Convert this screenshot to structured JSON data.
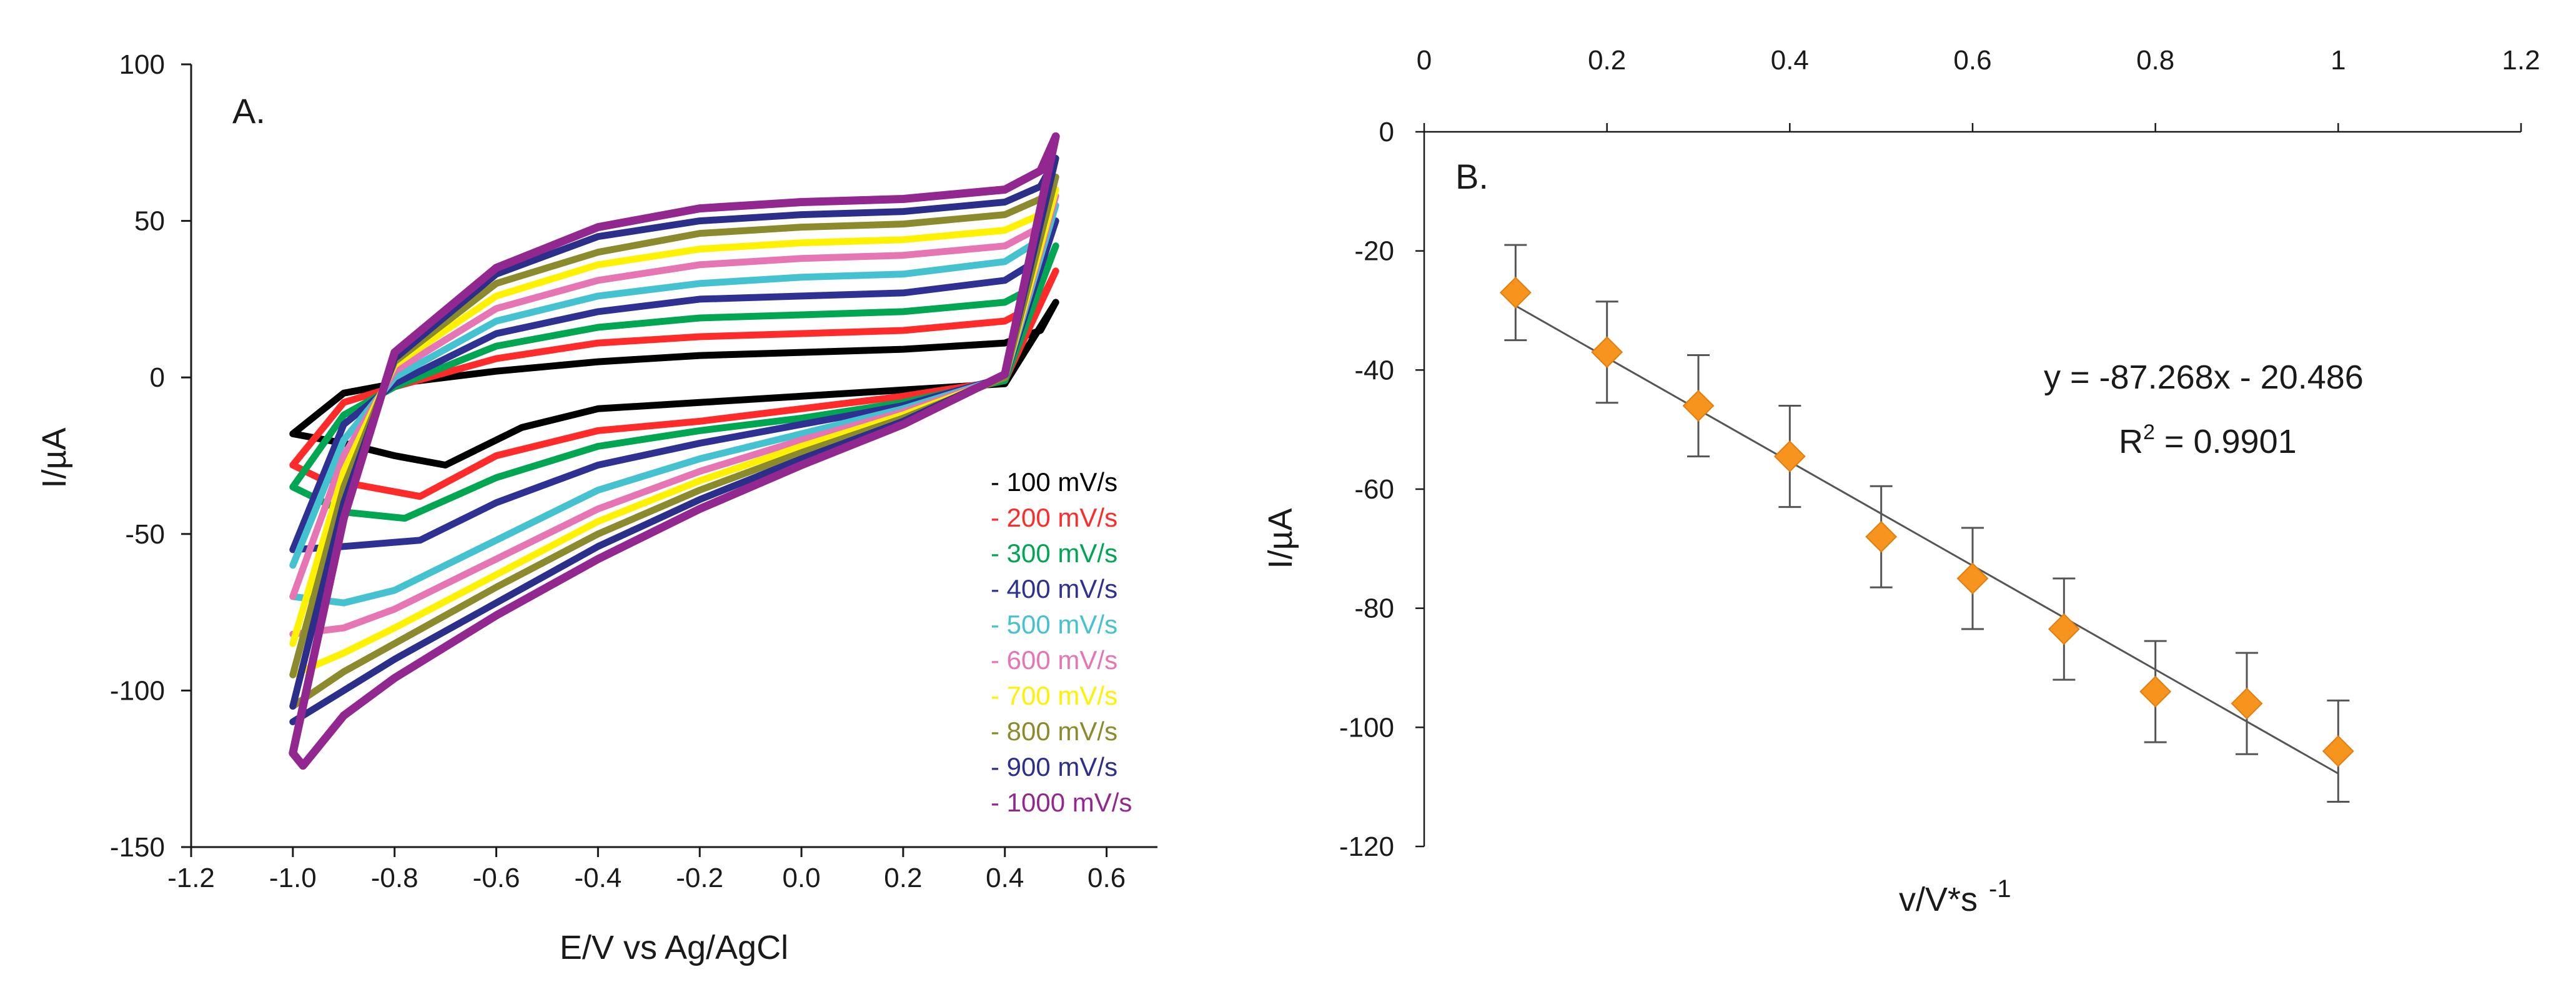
{
  "chart_data": [
    {
      "type": "line",
      "panel_label": "A.",
      "xlabel": "E/V vs Ag/AgCl",
      "ylabel": "I/µA",
      "xlim": [
        -1.2,
        0.7
      ],
      "ylim": [
        -150,
        100
      ],
      "xticks": [
        "-1.2",
        "-1.0",
        "-0.8",
        "-0.6",
        "-0.4",
        "-0.2",
        "0.0",
        "0.2",
        "0.4",
        "0.6"
      ],
      "yticks": [
        "100",
        "50",
        "0",
        "-50",
        "-100",
        "-150"
      ],
      "grid": false,
      "legend_position": "bottom-right",
      "series": [
        {
          "name": "100 mV/s",
          "color": "#000000",
          "anodic": [
            [
              -1.0,
              -18
            ],
            [
              -0.9,
              -5
            ],
            [
              -0.8,
              -2
            ],
            [
              -0.6,
              2
            ],
            [
              -0.4,
              5
            ],
            [
              -0.2,
              7
            ],
            [
              0.0,
              8
            ],
            [
              0.2,
              9
            ],
            [
              0.4,
              11
            ],
            [
              0.47,
              15
            ],
            [
              0.5,
              24
            ]
          ],
          "cathodic": [
            [
              0.5,
              16
            ],
            [
              0.4,
              -2
            ],
            [
              0.2,
              -4
            ],
            [
              0.0,
              -6
            ],
            [
              -0.2,
              -8
            ],
            [
              -0.4,
              -10
            ],
            [
              -0.55,
              -16
            ],
            [
              -0.7,
              -28
            ],
            [
              -0.8,
              -25
            ],
            [
              -0.9,
              -21
            ],
            [
              -1.0,
              -18
            ]
          ]
        },
        {
          "name": "200 mV/s",
          "color": "#ff2a2a",
          "anodic": [
            [
              -1.0,
              -28
            ],
            [
              -0.9,
              -8
            ],
            [
              -0.8,
              -3
            ],
            [
              -0.6,
              6
            ],
            [
              -0.4,
              11
            ],
            [
              -0.2,
              13
            ],
            [
              0.0,
              14
            ],
            [
              0.2,
              15
            ],
            [
              0.4,
              18
            ],
            [
              0.47,
              24
            ],
            [
              0.5,
              34
            ]
          ],
          "cathodic": [
            [
              0.5,
              20
            ],
            [
              0.4,
              -1
            ],
            [
              0.2,
              -6
            ],
            [
              0.0,
              -10
            ],
            [
              -0.2,
              -14
            ],
            [
              -0.4,
              -17
            ],
            [
              -0.6,
              -25
            ],
            [
              -0.75,
              -38
            ],
            [
              -0.85,
              -35
            ],
            [
              -0.95,
              -32
            ],
            [
              -1.0,
              -28
            ]
          ]
        },
        {
          "name": "300 mV/s",
          "color": "#00a651",
          "anodic": [
            [
              -1.0,
              -35
            ],
            [
              -0.9,
              -12
            ],
            [
              -0.8,
              -3
            ],
            [
              -0.6,
              10
            ],
            [
              -0.4,
              16
            ],
            [
              -0.2,
              19
            ],
            [
              0.0,
              20
            ],
            [
              0.2,
              21
            ],
            [
              0.4,
              24
            ],
            [
              0.47,
              30
            ],
            [
              0.5,
              42
            ]
          ],
          "cathodic": [
            [
              0.5,
              24
            ],
            [
              0.4,
              -1
            ],
            [
              0.2,
              -8
            ],
            [
              0.0,
              -13
            ],
            [
              -0.2,
              -17
            ],
            [
              -0.4,
              -22
            ],
            [
              -0.6,
              -32
            ],
            [
              -0.78,
              -45
            ],
            [
              -0.9,
              -43
            ],
            [
              -1.0,
              -35
            ]
          ]
        },
        {
          "name": "400 mV/s",
          "color": "#2e3192",
          "anodic": [
            [
              -1.0,
              -55
            ],
            [
              -0.9,
              -15
            ],
            [
              -0.8,
              -2
            ],
            [
              -0.6,
              14
            ],
            [
              -0.4,
              21
            ],
            [
              -0.2,
              25
            ],
            [
              0.0,
              26
            ],
            [
              0.2,
              27
            ],
            [
              0.4,
              31
            ],
            [
              0.47,
              38
            ],
            [
              0.5,
              50
            ]
          ],
          "cathodic": [
            [
              0.5,
              27
            ],
            [
              0.4,
              0
            ],
            [
              0.2,
              -9
            ],
            [
              0.0,
              -15
            ],
            [
              -0.2,
              -21
            ],
            [
              -0.4,
              -28
            ],
            [
              -0.6,
              -40
            ],
            [
              -0.75,
              -52
            ],
            [
              -0.9,
              -54
            ],
            [
              -1.0,
              -55
            ]
          ]
        },
        {
          "name": "500 mV/s",
          "color": "#45c2d0",
          "anodic": [
            [
              -1.0,
              -60
            ],
            [
              -0.9,
              -20
            ],
            [
              -0.8,
              0
            ],
            [
              -0.6,
              18
            ],
            [
              -0.4,
              26
            ],
            [
              -0.2,
              30
            ],
            [
              0.0,
              32
            ],
            [
              0.2,
              33
            ],
            [
              0.4,
              37
            ],
            [
              0.47,
              44
            ],
            [
              0.5,
              55
            ]
          ],
          "cathodic": [
            [
              0.5,
              30
            ],
            [
              0.4,
              0
            ],
            [
              0.2,
              -10
            ],
            [
              0.0,
              -18
            ],
            [
              -0.2,
              -26
            ],
            [
              -0.4,
              -36
            ],
            [
              -0.6,
              -52
            ],
            [
              -0.8,
              -68
            ],
            [
              -0.9,
              -72
            ],
            [
              -1.0,
              -70
            ]
          ]
        },
        {
          "name": "600 mV/s",
          "color": "#e675b4",
          "anodic": [
            [
              -1.0,
              -70
            ],
            [
              -0.9,
              -25
            ],
            [
              -0.8,
              2
            ],
            [
              -0.6,
              22
            ],
            [
              -0.4,
              31
            ],
            [
              -0.2,
              36
            ],
            [
              0.0,
              38
            ],
            [
              0.2,
              39
            ],
            [
              0.4,
              42
            ],
            [
              0.47,
              48
            ],
            [
              0.5,
              58
            ]
          ],
          "cathodic": [
            [
              0.5,
              32
            ],
            [
              0.4,
              0
            ],
            [
              0.2,
              -11
            ],
            [
              0.0,
              -20
            ],
            [
              -0.2,
              -30
            ],
            [
              -0.4,
              -42
            ],
            [
              -0.6,
              -58
            ],
            [
              -0.8,
              -74
            ],
            [
              -0.9,
              -80
            ],
            [
              -1.0,
              -82
            ]
          ]
        },
        {
          "name": "700 mV/s",
          "color": "#fff200",
          "anodic": [
            [
              -1.0,
              -85
            ],
            [
              -0.9,
              -30
            ],
            [
              -0.8,
              4
            ],
            [
              -0.6,
              26
            ],
            [
              -0.4,
              36
            ],
            [
              -0.2,
              41
            ],
            [
              0.0,
              43
            ],
            [
              0.2,
              44
            ],
            [
              0.4,
              47
            ],
            [
              0.47,
              52
            ],
            [
              0.5,
              60
            ]
          ],
          "cathodic": [
            [
              0.5,
              34
            ],
            [
              0.4,
              0
            ],
            [
              0.2,
              -12
            ],
            [
              0.0,
              -22
            ],
            [
              -0.2,
              -33
            ],
            [
              -0.4,
              -46
            ],
            [
              -0.6,
              -63
            ],
            [
              -0.8,
              -80
            ],
            [
              -0.9,
              -88
            ],
            [
              -1.0,
              -95
            ]
          ]
        },
        {
          "name": "800 mV/s",
          "color": "#8b8b2e",
          "anodic": [
            [
              -1.0,
              -95
            ],
            [
              -0.9,
              -35
            ],
            [
              -0.8,
              5
            ],
            [
              -0.6,
              30
            ],
            [
              -0.4,
              40
            ],
            [
              -0.2,
              46
            ],
            [
              0.0,
              48
            ],
            [
              0.2,
              49
            ],
            [
              0.4,
              52
            ],
            [
              0.47,
              57
            ],
            [
              0.5,
              64
            ]
          ],
          "cathodic": [
            [
              0.5,
              35
            ],
            [
              0.4,
              0
            ],
            [
              0.2,
              -13
            ],
            [
              0.0,
              -24
            ],
            [
              -0.2,
              -36
            ],
            [
              -0.4,
              -50
            ],
            [
              -0.6,
              -67
            ],
            [
              -0.8,
              -85
            ],
            [
              -0.9,
              -94
            ],
            [
              -1.0,
              -105
            ]
          ]
        },
        {
          "name": "900 mV/s",
          "color": "#2b2f8a",
          "anodic": [
            [
              -1.0,
              -105
            ],
            [
              -0.9,
              -40
            ],
            [
              -0.8,
              6
            ],
            [
              -0.6,
              33
            ],
            [
              -0.4,
              45
            ],
            [
              -0.2,
              50
            ],
            [
              0.0,
              52
            ],
            [
              0.2,
              53
            ],
            [
              0.4,
              56
            ],
            [
              0.47,
              61
            ],
            [
              0.5,
              70
            ]
          ],
          "cathodic": [
            [
              0.5,
              36
            ],
            [
              0.4,
              1
            ],
            [
              0.2,
              -14
            ],
            [
              0.0,
              -26
            ],
            [
              -0.2,
              -39
            ],
            [
              -0.4,
              -54
            ],
            [
              -0.6,
              -72
            ],
            [
              -0.8,
              -90
            ],
            [
              -0.9,
              -100
            ],
            [
              -1.0,
              -110
            ]
          ]
        },
        {
          "name": "1000 mV/s",
          "color": "#92278f",
          "anodic": [
            [
              -1.0,
              -120
            ],
            [
              -0.9,
              -45
            ],
            [
              -0.8,
              8
            ],
            [
              -0.6,
              35
            ],
            [
              -0.4,
              48
            ],
            [
              -0.2,
              54
            ],
            [
              0.0,
              56
            ],
            [
              0.2,
              57
            ],
            [
              0.4,
              60
            ],
            [
              0.47,
              66
            ],
            [
              0.5,
              77
            ]
          ],
          "cathodic": [
            [
              0.5,
              38
            ],
            [
              0.4,
              1
            ],
            [
              0.2,
              -15
            ],
            [
              0.0,
              -28
            ],
            [
              -0.2,
              -42
            ],
            [
              -0.4,
              -58
            ],
            [
              -0.6,
              -76
            ],
            [
              -0.8,
              -96
            ],
            [
              -0.9,
              -108
            ],
            [
              -0.98,
              -124
            ],
            [
              -1.0,
              -120
            ]
          ]
        }
      ]
    },
    {
      "type": "scatter",
      "panel_label": "B.",
      "xlabel": "v/V*s",
      "xlabel_sup": "-1",
      "ylabel": "I/µA",
      "xlim": [
        0,
        1.2
      ],
      "ylim": [
        -120,
        0
      ],
      "xticks": [
        "0",
        "0.2",
        "0.4",
        "0.6",
        "0.8",
        "1",
        "1.2"
      ],
      "yticks": [
        "0",
        "-20",
        "-40",
        "-60",
        "-80",
        "-100",
        "-120"
      ],
      "x_axis_position": "top",
      "grid": false,
      "marker_color": "#f7941d",
      "x": [
        0.1,
        0.2,
        0.3,
        0.4,
        0.5,
        0.6,
        0.7,
        0.8,
        0.9,
        1.0
      ],
      "y": [
        -27,
        -37,
        -46,
        -54.5,
        -68,
        -75,
        -83.5,
        -94,
        -96,
        -104
      ],
      "error": [
        8,
        8.5,
        8.5,
        8.5,
        8.5,
        8.5,
        8.5,
        8.5,
        8.5,
        8.5
      ],
      "trendline": {
        "slope": -87.268,
        "intercept": -20.486
      },
      "equation_text": "y = -87.268x - 20.486",
      "r2_label": "R",
      "r2_sup": "2",
      "r2_value": " = 0.9901"
    }
  ]
}
